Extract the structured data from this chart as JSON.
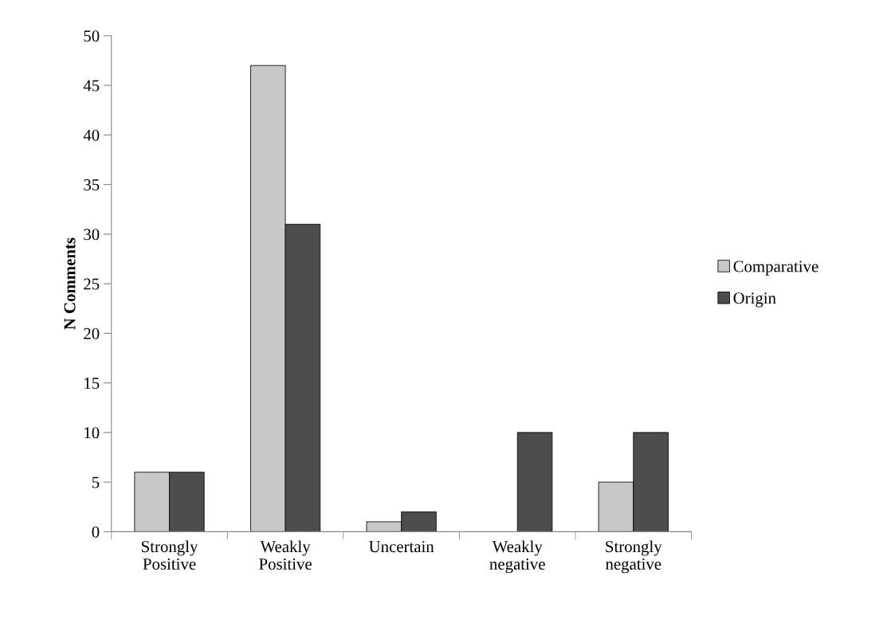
{
  "chart_data": {
    "type": "bar",
    "ylabel": "N Comments",
    "categories": [
      "Strongly\nPositive",
      "Weakly\nPositive",
      "Uncertain",
      "Weakly\nnegative",
      "Strongly\nnegative"
    ],
    "series": [
      {
        "name": "Comparative",
        "color": "#c8c8c8",
        "values": [
          6,
          47,
          1,
          0,
          5
        ]
      },
      {
        "name": "Origin",
        "color": "#4d4d4d",
        "values": [
          6,
          31,
          2,
          10,
          10
        ]
      }
    ],
    "ylim": [
      0,
      50
    ],
    "yticks": [
      0,
      5,
      10,
      15,
      20,
      25,
      30,
      35,
      40,
      45,
      50
    ],
    "grid": false,
    "legend": "right"
  }
}
